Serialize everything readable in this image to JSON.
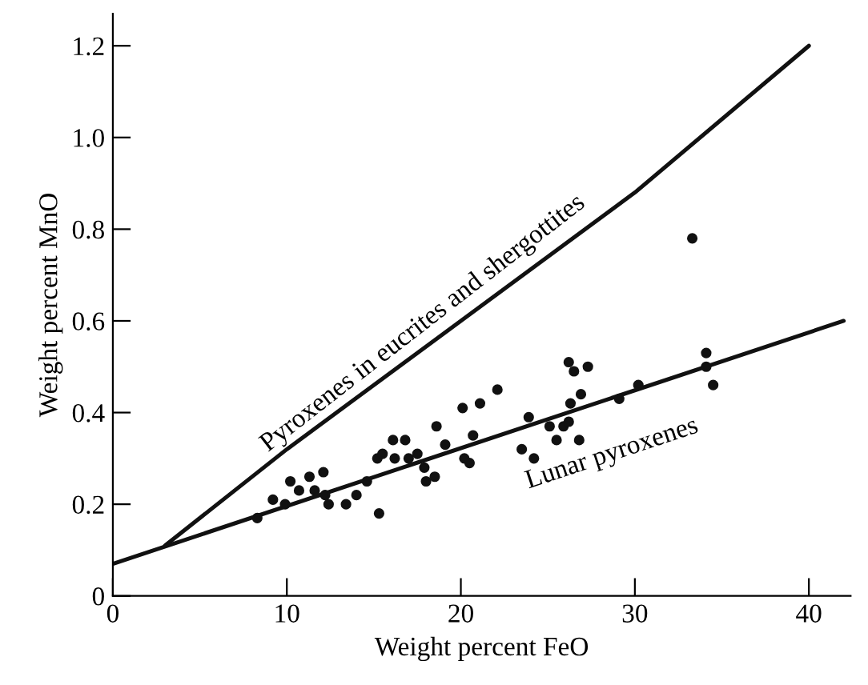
{
  "chart_data": {
    "type": "scatter",
    "xlabel": "Weight percent FeO",
    "ylabel": "Weight percent MnO",
    "xlim": [
      0,
      42.4
    ],
    "ylim": [
      0,
      1.27
    ],
    "xticks": [
      0,
      10,
      20,
      30,
      40
    ],
    "yticks": [
      0,
      0.2,
      0.4,
      0.6,
      0.8,
      {
        "value": 1.0,
        "label": "1.0"
      },
      1.2
    ],
    "grid": false,
    "legend": false,
    "series": [
      {
        "marker": "circle",
        "color": "#111111",
        "x": [
          8.3,
          9.2,
          9.9,
          10.2,
          10.7,
          11.3,
          11.6,
          12.1,
          12.2,
          12.4,
          13.4,
          14.0,
          14.6,
          15.3,
          15.2,
          15.5,
          16.1,
          16.8,
          16.2,
          17.0,
          17.5,
          17.9,
          18.0,
          18.5,
          18.6,
          19.1,
          20.1,
          20.2,
          20.5,
          20.7,
          21.1,
          22.1,
          23.5,
          23.9,
          24.2,
          25.1,
          25.5,
          25.9,
          26.2,
          26.3,
          26.8,
          26.9,
          26.2,
          26.5,
          27.3,
          29.1,
          30.2,
          33.3,
          34.1,
          34.1,
          34.5
        ],
        "values": [
          0.17,
          0.21,
          0.2,
          0.25,
          0.23,
          0.26,
          0.23,
          0.27,
          0.22,
          0.2,
          0.2,
          0.22,
          0.25,
          0.18,
          0.3,
          0.31,
          0.34,
          0.34,
          0.3,
          0.3,
          0.31,
          0.28,
          0.25,
          0.26,
          0.37,
          0.33,
          0.41,
          0.3,
          0.29,
          0.35,
          0.42,
          0.45,
          0.32,
          0.39,
          0.3,
          0.37,
          0.34,
          0.37,
          0.38,
          0.42,
          0.34,
          0.44,
          0.51,
          0.49,
          0.5,
          0.43,
          0.46,
          0.78,
          0.53,
          0.5,
          0.46
        ]
      },
      {
        "type": "line",
        "marker": "none",
        "name": "Pyroxenes in eucrites and shergottites",
        "color": "#111111",
        "x": [
          3,
          10,
          20,
          30,
          40
        ],
        "values": [
          0.11,
          0.32,
          0.6,
          0.88,
          1.2
        ]
      },
      {
        "type": "line",
        "marker": "none",
        "name": "Lunar pyroxenes",
        "color": "#111111",
        "x": [
          0,
          42
        ],
        "values": [
          0.07,
          0.6
        ]
      }
    ]
  }
}
